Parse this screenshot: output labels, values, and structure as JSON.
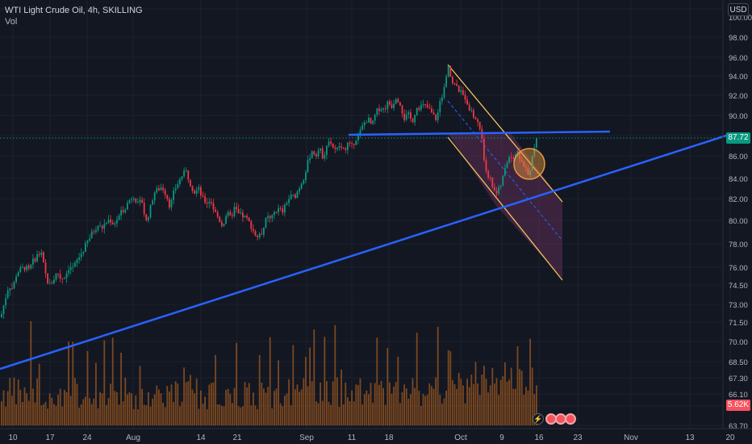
{
  "legend": {
    "title": "WTI Light Crude Oil, 4h, SKILLING",
    "sub": "Vol"
  },
  "currency_button": "USD",
  "last_price_tag": "87.72",
  "volume_tag": "5.62K",
  "colors": {
    "up": "#089981",
    "down": "#f23645",
    "trendline": "#2962ff",
    "channel": "#f7c35a",
    "channel_fill": "#5d2e56",
    "volume": "#a0591f",
    "circle": "#e8983e"
  },
  "bottom_icons": [
    "bolt-icon",
    "earnings-icon",
    "earnings-icon",
    "earnings-icon"
  ],
  "chart_data": {
    "type": "candlestick",
    "symbol": "WTI Light Crude Oil",
    "interval": "4h",
    "y_ticks": [
      "100.00",
      "98.00",
      "96.00",
      "94.00",
      "92.00",
      "90.00",
      "88.00",
      "86.00",
      "84.00",
      "82.00",
      "80.00",
      "78.00",
      "76.00",
      "74.50",
      "73.00",
      "71.50",
      "70.00",
      "68.50",
      "67.30",
      "66.10",
      "65.00",
      "63.70"
    ],
    "x_ticks": [
      "10",
      "17",
      "24",
      "Aug",
      "14",
      "21",
      "Sep",
      "11",
      "18",
      "Oct",
      "9",
      "16",
      "23",
      "Nov",
      "13",
      "20"
    ],
    "ylim": [
      63.0,
      101.0
    ],
    "price_path": [
      [
        0,
        71.9
      ],
      [
        5,
        73.3
      ],
      [
        10,
        74.5
      ],
      [
        15,
        74.2
      ],
      [
        20,
        75.6
      ],
      [
        25,
        75.8
      ],
      [
        30,
        76.0
      ],
      [
        35,
        75.7
      ],
      [
        40,
        76.5
      ],
      [
        45,
        77.0
      ],
      [
        50,
        77.2
      ],
      [
        55,
        75.5
      ],
      [
        60,
        74.4
      ],
      [
        65,
        74.9
      ],
      [
        70,
        75.6
      ],
      [
        75,
        75.0
      ],
      [
        80,
        75.3
      ],
      [
        85,
        76.1
      ],
      [
        90,
        75.9
      ],
      [
        95,
        76.6
      ],
      [
        100,
        77.2
      ],
      [
        105,
        77.8
      ],
      [
        110,
        78.5
      ],
      [
        115,
        79.1
      ],
      [
        120,
        79.6
      ],
      [
        125,
        79.3
      ],
      [
        130,
        79.8
      ],
      [
        135,
        80.1
      ],
      [
        140,
        79.7
      ],
      [
        145,
        80.2
      ],
      [
        150,
        80.8
      ],
      [
        155,
        81.3
      ],
      [
        160,
        81.9
      ],
      [
        165,
        82.3
      ],
      [
        170,
        81.4
      ],
      [
        175,
        81.8
      ],
      [
        180,
        79.8
      ],
      [
        185,
        81.0
      ],
      [
        190,
        82.6
      ],
      [
        195,
        82.9
      ],
      [
        200,
        83.2
      ],
      [
        205,
        82.4
      ],
      [
        210,
        81.2
      ],
      [
        215,
        82.8
      ],
      [
        220,
        83.6
      ],
      [
        225,
        84.3
      ],
      [
        230,
        84.6
      ],
      [
        235,
        83.5
      ],
      [
        240,
        82.6
      ],
      [
        245,
        83.0
      ],
      [
        250,
        82.0
      ],
      [
        255,
        81.6
      ],
      [
        260,
        81.9
      ],
      [
        265,
        80.8
      ],
      [
        270,
        80.2
      ],
      [
        275,
        79.5
      ],
      [
        280,
        80.7
      ],
      [
        285,
        80.2
      ],
      [
        290,
        81.2
      ],
      [
        295,
        80.5
      ],
      [
        300,
        80.4
      ],
      [
        305,
        80.1
      ],
      [
        310,
        79.6
      ],
      [
        315,
        78.8
      ],
      [
        320,
        78.5
      ],
      [
        325,
        79.2
      ],
      [
        330,
        80.3
      ],
      [
        335,
        80.0
      ],
      [
        340,
        80.9
      ],
      [
        345,
        81.0
      ],
      [
        350,
        80.8
      ],
      [
        355,
        81.8
      ],
      [
        360,
        82.2
      ],
      [
        365,
        82.3
      ],
      [
        370,
        83.1
      ],
      [
        375,
        84.0
      ],
      [
        380,
        85.2
      ],
      [
        385,
        86.5
      ],
      [
        390,
        86.1
      ],
      [
        395,
        86.7
      ],
      [
        400,
        85.8
      ],
      [
        405,
        87.6
      ],
      [
        410,
        87.2
      ],
      [
        415,
        86.4
      ],
      [
        420,
        87.0
      ],
      [
        425,
        86.5
      ],
      [
        430,
        87.2
      ],
      [
        435,
        86.9
      ],
      [
        440,
        87.7
      ],
      [
        445,
        88.3
      ],
      [
        450,
        89.2
      ],
      [
        455,
        89.7
      ],
      [
        460,
        88.9
      ],
      [
        465,
        90.3
      ],
      [
        470,
        90.8
      ],
      [
        475,
        90.6
      ],
      [
        480,
        91.3
      ],
      [
        485,
        90.9
      ],
      [
        490,
        91.9
      ],
      [
        495,
        91.2
      ],
      [
        500,
        89.7
      ],
      [
        505,
        90.1
      ],
      [
        510,
        89.4
      ],
      [
        515,
        90.7
      ],
      [
        520,
        90.9
      ],
      [
        525,
        91.0
      ],
      [
        530,
        90.7
      ],
      [
        535,
        90.1
      ],
      [
        540,
        89.6
      ],
      [
        545,
        91.4
      ],
      [
        550,
        92.9
      ],
      [
        555,
        94.9
      ],
      [
        560,
        93.4
      ],
      [
        565,
        92.8
      ],
      [
        570,
        92.3
      ],
      [
        575,
        91.9
      ],
      [
        580,
        90.9
      ],
      [
        585,
        90.0
      ],
      [
        590,
        89.5
      ],
      [
        595,
        88.5
      ],
      [
        600,
        85.0
      ],
      [
        605,
        84.2
      ],
      [
        610,
        83.2
      ],
      [
        615,
        82.5
      ],
      [
        620,
        83.4
      ],
      [
        625,
        84.8
      ],
      [
        630,
        86.1
      ],
      [
        635,
        85.8
      ],
      [
        640,
        86.4
      ],
      [
        645,
        85.6
      ],
      [
        650,
        84.9
      ],
      [
        655,
        84.0
      ],
      [
        660,
        86.5
      ],
      [
        665,
        87.72
      ]
    ],
    "overlays": [
      {
        "type": "trendline",
        "name": "ascending support"
      },
      {
        "type": "horizontal resistance"
      },
      {
        "type": "descending channel"
      },
      {
        "type": "highlight circle"
      }
    ]
  }
}
